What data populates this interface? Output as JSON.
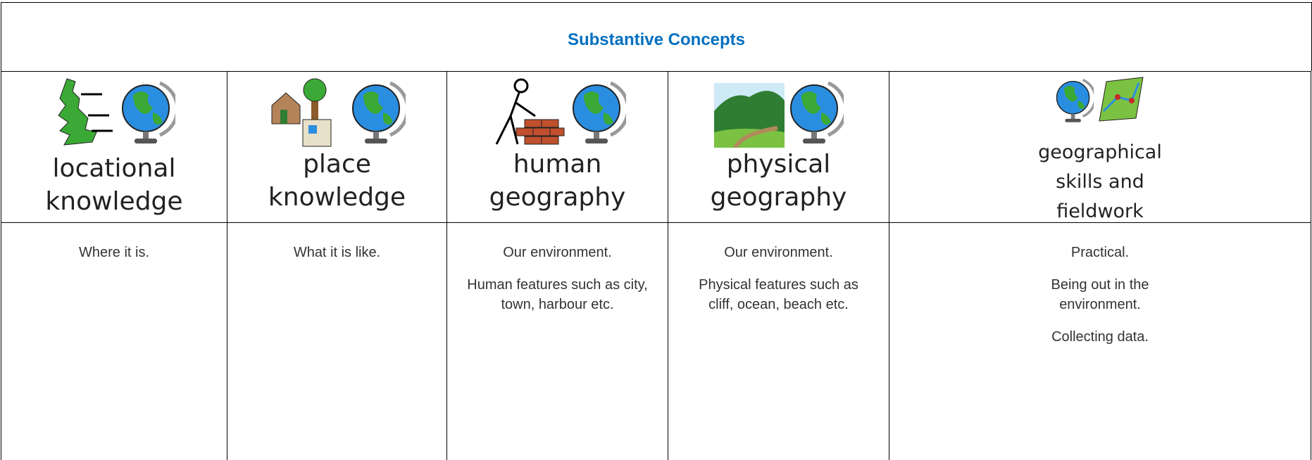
{
  "table": {
    "title": "Substantive Concepts",
    "columns": [
      {
        "label": [
          "locational",
          "knowledge"
        ],
        "description": [
          "Where it is."
        ]
      },
      {
        "label": [
          "place",
          "knowledge"
        ],
        "description": [
          "What it is like."
        ]
      },
      {
        "label": [
          "human",
          "geography"
        ],
        "description": [
          "Our environment.",
          "Human features such as city, town, harbour etc."
        ]
      },
      {
        "label": [
          "physical",
          "geography"
        ],
        "description": [
          "Our environment.",
          "Physical features such as cliff, ocean, beach etc."
        ]
      },
      {
        "label": [
          "geographical",
          "skills and",
          "fieldwork"
        ],
        "description": [
          "Practical.",
          "Being out in the environment.",
          "Collecting data."
        ]
      }
    ]
  }
}
